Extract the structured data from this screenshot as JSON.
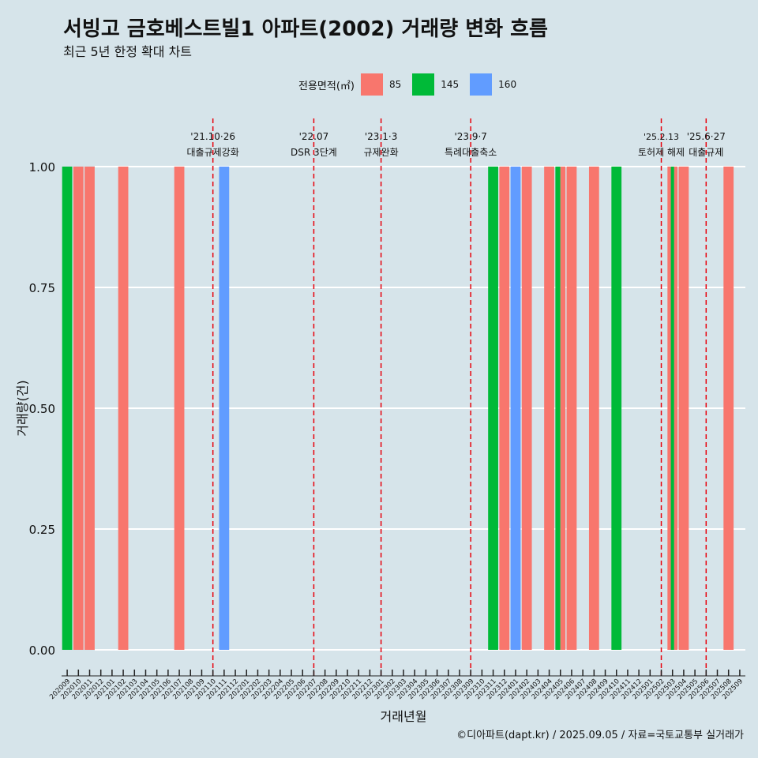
{
  "header": {
    "title": "서빙고 금호베스트빌1 아파트(2002) 거래량 변화 흐름",
    "subtitle": "최근 5년 한정 확대 차트"
  },
  "caption": "©디아파트(dapt.kr) / 2025.09.05 / 자료=국토교통부 실거래가",
  "chart_data": {
    "type": "bar",
    "title": "서빙고 금호베스트빌1 아파트(2002) 거래량 변화 흐름",
    "xlabel": "거래년월",
    "ylabel": "거래량(건)",
    "ylim": [
      0,
      1
    ],
    "yticks": [
      "0.00",
      "0.25",
      "0.50",
      "0.75",
      "1.00"
    ],
    "legend": {
      "title": "전용면적(㎡)",
      "position": "top",
      "entries": [
        {
          "name": "85",
          "color": "#f8766d"
        },
        {
          "name": "145",
          "color": "#00ba38"
        },
        {
          "name": "160",
          "color": "#619cff"
        }
      ]
    },
    "categories": [
      "202009",
      "202010",
      "202011",
      "202012",
      "202101",
      "202102",
      "202103",
      "202104",
      "202105",
      "202106",
      "202107",
      "202108",
      "202109",
      "202110",
      "202111",
      "202112",
      "202201",
      "202202",
      "202203",
      "202204",
      "202205",
      "202206",
      "202207",
      "202208",
      "202209",
      "202210",
      "202211",
      "202212",
      "202301",
      "202302",
      "202303",
      "202304",
      "202305",
      "202306",
      "202307",
      "202308",
      "202309",
      "202310",
      "202311",
      "202312",
      "202401",
      "202402",
      "202403",
      "202404",
      "202405",
      "202406",
      "202407",
      "202408",
      "202409",
      "202410",
      "202411",
      "202412",
      "202501",
      "202502",
      "202503",
      "202504",
      "202505",
      "202506",
      "202507",
      "202508",
      "202509"
    ],
    "bars": [
      {
        "month": "202009",
        "series": [
          "145"
        ],
        "value": 1
      },
      {
        "month": "202010",
        "series": [
          "85"
        ],
        "value": 1
      },
      {
        "month": "202011",
        "series": [
          "85"
        ],
        "value": 1
      },
      {
        "month": "202102",
        "series": [
          "85"
        ],
        "value": 1
      },
      {
        "month": "202107",
        "series": [
          "85"
        ],
        "value": 1
      },
      {
        "month": "202111",
        "series": [
          "160"
        ],
        "value": 1
      },
      {
        "month": "202311",
        "series": [
          "145"
        ],
        "value": 1
      },
      {
        "month": "202312",
        "series": [
          "85"
        ],
        "value": 1
      },
      {
        "month": "202401",
        "series": [
          "160"
        ],
        "value": 1
      },
      {
        "month": "202402",
        "series": [
          "85"
        ],
        "value": 1
      },
      {
        "month": "202404",
        "series": [
          "85"
        ],
        "value": 1
      },
      {
        "month": "202405",
        "series": [
          "145",
          "85"
        ],
        "value": 1
      },
      {
        "month": "202406",
        "series": [
          "85"
        ],
        "value": 1
      },
      {
        "month": "202408",
        "series": [
          "85"
        ],
        "value": 1
      },
      {
        "month": "202410",
        "series": [
          "145"
        ],
        "value": 1
      },
      {
        "month": "202503",
        "series": [
          "85",
          "145",
          "85"
        ],
        "value": 1
      },
      {
        "month": "202504",
        "series": [
          "85"
        ],
        "value": 1
      },
      {
        "month": "202508",
        "series": [
          "85"
        ],
        "value": 1
      }
    ],
    "events": [
      {
        "month": "202110",
        "date": "'21.10·26",
        "label": "대출규제강화"
      },
      {
        "month": "202207",
        "date": "'22.07",
        "label": "DSR 3단계"
      },
      {
        "month": "202301",
        "date": "'23.1·3",
        "label": "규제완화"
      },
      {
        "month": "202309",
        "date": "'23.9·7",
        "label": "특례대출축소"
      },
      {
        "month": "202502",
        "date": "'25.2.13",
        "label": "토허제 해제"
      },
      {
        "month": "202506",
        "date": "'25.6·27",
        "label": "대출규제"
      }
    ]
  }
}
